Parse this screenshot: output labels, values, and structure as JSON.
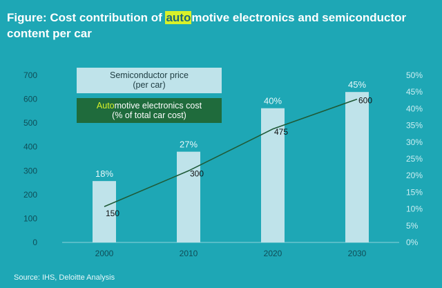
{
  "title": {
    "prefix": "Figure: Cost contribution of ",
    "highlight": "auto",
    "suffix": "motive electronics and semiconductor content per car"
  },
  "source": "Source: IHS, Deloitte Analysis",
  "legend": {
    "bar_label": "Semiconductor price\n(per car)",
    "line_label_highlight": "Auto",
    "line_label_rest": "motive electronics cost",
    "line_label_line2": "(% of total car cost)"
  },
  "colors": {
    "background": "#1ea7b5",
    "bar": "#bfe3ea",
    "line": "#1f5a37",
    "legend_line_box": "#1f6b3c",
    "highlight": "#d8f12a",
    "axis_text": "#0f4d57",
    "right_axis_text": "#cdeef2"
  },
  "chart_data": {
    "type": "bar",
    "categories": [
      "2000",
      "2010",
      "2020",
      "2030"
    ],
    "series": [
      {
        "name": "Semiconductor price (per car)",
        "type": "bar",
        "values": [
          257,
          380,
          562,
          630
        ],
        "labels": [
          "18%",
          "27%",
          "40%",
          "45%"
        ],
        "axis": "left"
      },
      {
        "name": "Automotive electronics cost (% of total car cost)",
        "type": "line",
        "values": [
          150,
          300,
          475,
          600
        ],
        "labels": [
          "150",
          "300",
          "475",
          "600"
        ],
        "axis": "left"
      }
    ],
    "y_left": {
      "ylim": [
        0,
        700
      ],
      "ticks": [
        "0",
        "100",
        "200",
        "300",
        "400",
        "500",
        "600",
        "700"
      ]
    },
    "y_right": {
      "ylim": [
        0,
        50
      ],
      "ticks": [
        "0%",
        "5%",
        "10%",
        "15%",
        "20%",
        "25%",
        "30%",
        "35%",
        "40%",
        "45%",
        "50%"
      ]
    },
    "grid": false,
    "legend_position": "top-left"
  }
}
